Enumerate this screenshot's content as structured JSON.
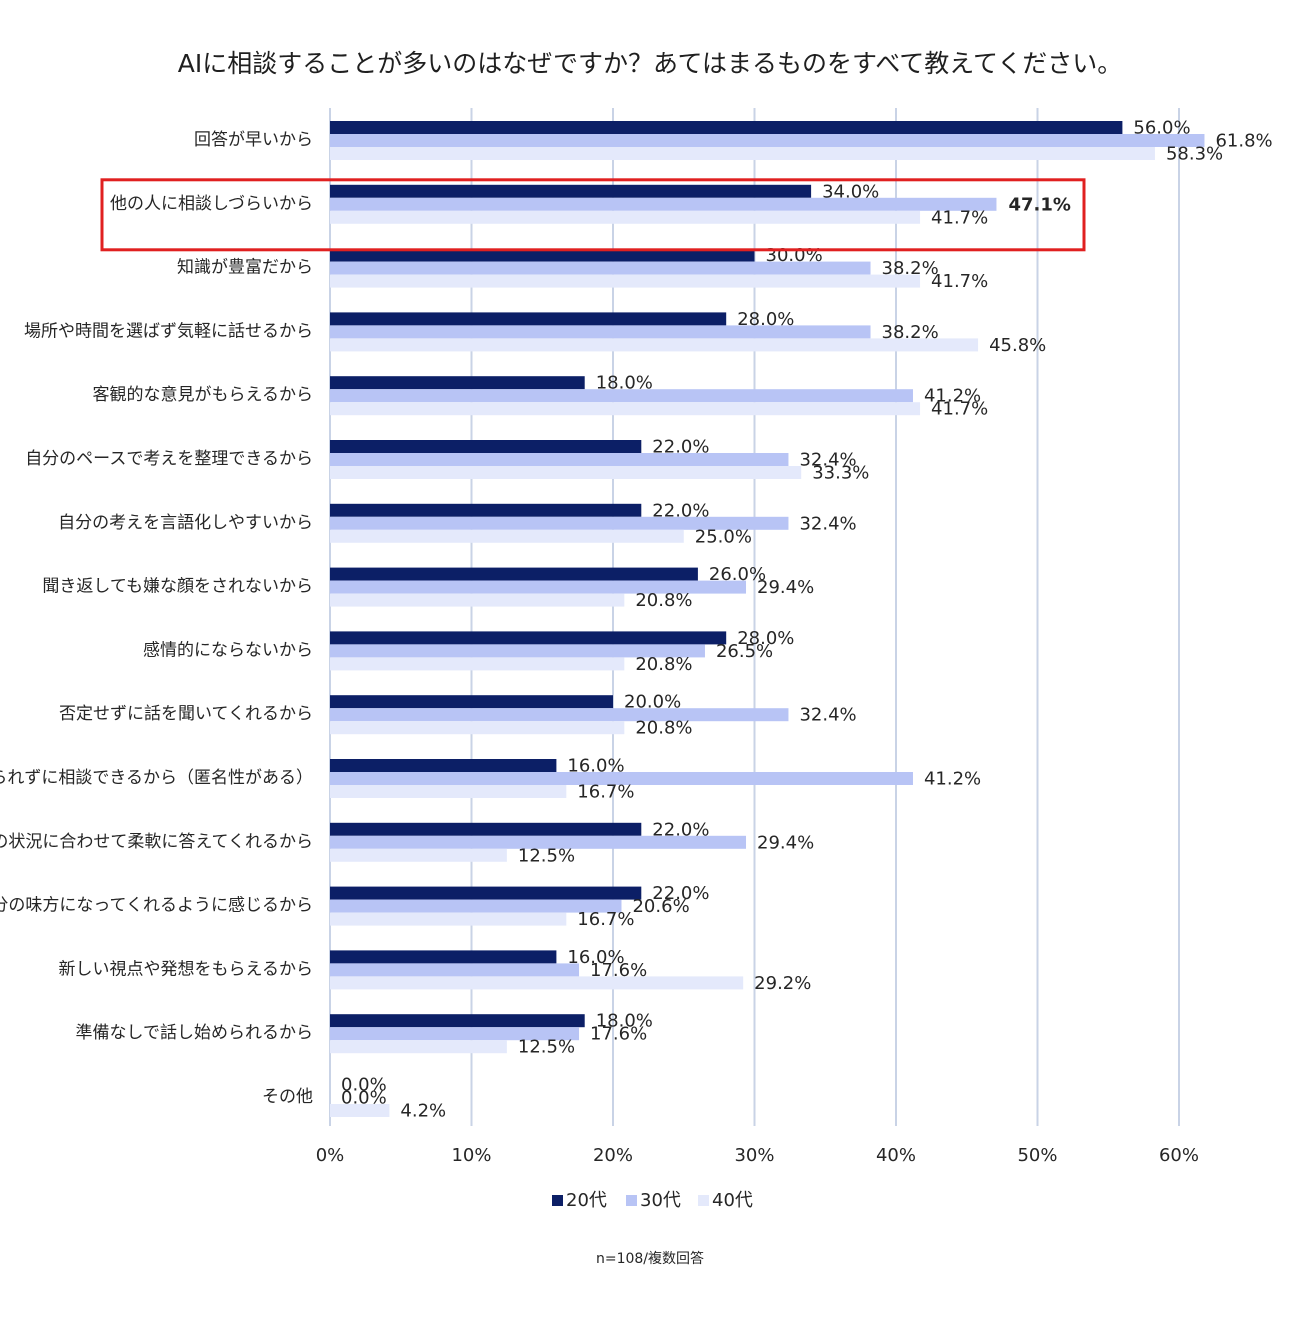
{
  "chart_data": {
    "type": "bar",
    "orientation": "horizontal",
    "title": "AIに相談することが多いのはなぜですか？あてはまるものをすべて教えてください。",
    "categories": [
      "回答が早いから",
      "他の人に相談しづらいから",
      "知識が豊富だから",
      "場所や時間を選ばず気軽に話せるから",
      "客観的な意見がもらえるから",
      "自分のペースで考えを整理できるから",
      "自分の考えを言語化しやすいから",
      "聞き返しても嫌な顔をされないから",
      "感情的にならないから",
      "否定せずに話を聞いてくれるから",
      "誰にも知られずに相談できるから（匿名性がある）",
      "自分の状況に合わせて柔軟に答えてくれるから",
      "いつも自分の味方になってくれるように感じるから",
      "新しい視点や発想をもらえるから",
      "準備なしで話し始められるから",
      "その他"
    ],
    "series": [
      {
        "name": "20代",
        "color": "#0c1f66",
        "values": [
          56.0,
          34.0,
          30.0,
          28.0,
          18.0,
          22.0,
          22.0,
          26.0,
          28.0,
          20.0,
          16.0,
          22.0,
          22.0,
          16.0,
          18.0,
          0.0
        ],
        "labels": [
          "56.0%",
          "34.0%",
          "30.0%",
          "28.0%",
          "18.0%",
          "22.0%",
          "22.0%",
          "26.0%",
          "28.0%",
          "20.0%",
          "16.0%",
          "22.0%",
          "22.0%",
          "16.0%",
          "18.0%",
          "0.0%"
        ]
      },
      {
        "name": "30代",
        "color": "#b8c4f5",
        "values": [
          61.8,
          47.1,
          38.2,
          38.2,
          41.2,
          32.4,
          32.4,
          29.4,
          26.5,
          32.4,
          41.2,
          29.4,
          20.6,
          17.6,
          17.6,
          0.0
        ],
        "labels": [
          "61.8%",
          "47.1%",
          "38.2%",
          "38.2%",
          "41.2%",
          "32.4%",
          "32.4%",
          "29.4%",
          "26.5%",
          "32.4%",
          "41.2%",
          "29.4%",
          "20.6%",
          "17.6%",
          "17.6%",
          "0.0%"
        ]
      },
      {
        "name": "40代",
        "color": "#e4e9fb",
        "values": [
          58.3,
          41.7,
          41.7,
          45.8,
          41.7,
          33.3,
          25.0,
          20.8,
          20.8,
          20.8,
          16.7,
          12.5,
          16.7,
          29.2,
          12.5,
          4.2
        ],
        "labels": [
          "58.3%",
          "41.7%",
          "41.7%",
          "45.8%",
          "41.7%",
          "33.3%",
          "25.0%",
          "20.8%",
          "20.8%",
          "20.8%",
          "16.7%",
          "12.5%",
          "16.7%",
          "29.2%",
          "12.5%",
          "4.2%"
        ]
      }
    ],
    "xlim": [
      0,
      60
    ],
    "xticks": [
      "0%",
      "10%",
      "20%",
      "30%",
      "40%",
      "50%",
      "60%"
    ],
    "grid": true,
    "legend_position": "bottom",
    "highlight": {
      "category_index": 1,
      "series_index": 1,
      "box_color": "#e02020",
      "label_color": "#e02020"
    },
    "note": "n=108/複数回答"
  }
}
